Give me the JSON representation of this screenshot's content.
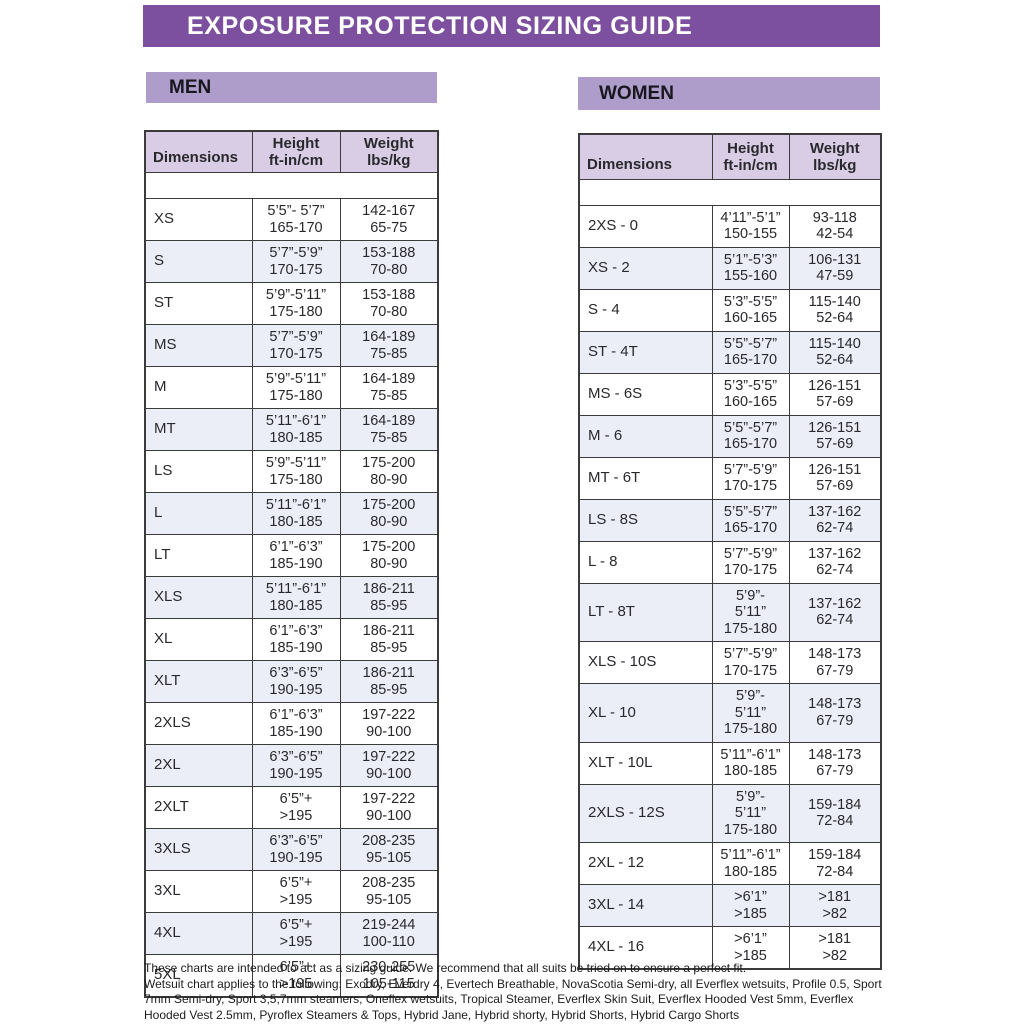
{
  "page": {
    "title": "EXPOSURE PROTECTION SIZING GUIDE"
  },
  "colors": {
    "title_bar": "#7C509E",
    "section_bar": "#AE9DCB",
    "table_header": "#D9CDE5",
    "band": "#4C88BD",
    "row_alt": "#ECEEF7",
    "border": "#3B3B3B"
  },
  "tables": [
    {
      "section_label": "MEN",
      "band_label": "MEN",
      "columns": {
        "dimensions": "Dimensions",
        "height_line1": "Height",
        "height_line2": "ft-in/cm",
        "weight_line1": "Weight",
        "weight_line2": "lbs/kg"
      },
      "rows": [
        {
          "size": "XS",
          "height": [
            "5’5”- 5’7”",
            "165-170"
          ],
          "weight": [
            "142-167",
            "65-75"
          ]
        },
        {
          "size": "S",
          "height": [
            "5’7”-5’9”",
            "170-175"
          ],
          "weight": [
            "153-188",
            "70-80"
          ]
        },
        {
          "size": "ST",
          "height": [
            "5’9”-5’11”",
            "175-180"
          ],
          "weight": [
            "153-188",
            "70-80"
          ]
        },
        {
          "size": "MS",
          "height": [
            "5’7”-5’9”",
            "170-175"
          ],
          "weight": [
            "164-189",
            "75-85"
          ]
        },
        {
          "size": "M",
          "height": [
            "5’9”-5’11”",
            "175-180"
          ],
          "weight": [
            "164-189",
            "75-85"
          ]
        },
        {
          "size": "MT",
          "height": [
            "5’11”-6’1”",
            "180-185"
          ],
          "weight": [
            "164-189",
            "75-85"
          ]
        },
        {
          "size": "LS",
          "height": [
            "5’9”-5’11”",
            "175-180"
          ],
          "weight": [
            "175-200",
            "80-90"
          ]
        },
        {
          "size": "L",
          "height": [
            "5’11”-6’1”",
            "180-185"
          ],
          "weight": [
            "175-200",
            "80-90"
          ]
        },
        {
          "size": "LT",
          "height": [
            "6’1”-6’3”",
            "185-190"
          ],
          "weight": [
            "175-200",
            "80-90"
          ]
        },
        {
          "size": "XLS",
          "height": [
            "5’11”-6’1”",
            "180-185"
          ],
          "weight": [
            "186-211",
            "85-95"
          ]
        },
        {
          "size": "XL",
          "height": [
            "6’1”-6’3”",
            "185-190"
          ],
          "weight": [
            "186-211",
            "85-95"
          ]
        },
        {
          "size": "XLT",
          "height": [
            "6’3”-6’5”",
            "190-195"
          ],
          "weight": [
            "186-211",
            "85-95"
          ]
        },
        {
          "size": "2XLS",
          "height": [
            "6’1”-6’3”",
            "185-190"
          ],
          "weight": [
            "197-222",
            "90-100"
          ]
        },
        {
          "size": "2XL",
          "height": [
            "6’3”-6’5”",
            "190-195"
          ],
          "weight": [
            "197-222",
            "90-100"
          ]
        },
        {
          "size": "2XLT",
          "height": [
            "6’5”+",
            ">195"
          ],
          "weight": [
            "197-222",
            "90-100"
          ]
        },
        {
          "size": "3XLS",
          "height": [
            "6’3”-6’5”",
            "190-195"
          ],
          "weight": [
            "208-235",
            "95-105"
          ]
        },
        {
          "size": "3XL",
          "height": [
            "6’5”+",
            ">195"
          ],
          "weight": [
            "208-235",
            "95-105"
          ]
        },
        {
          "size": "4XL",
          "height": [
            "6’5”+",
            ">195"
          ],
          "weight": [
            "219-244",
            "100-110"
          ]
        },
        {
          "size": "5XL",
          "height": [
            "6’5”+",
            ">195"
          ],
          "weight": [
            "230-255",
            "105-115"
          ]
        }
      ]
    },
    {
      "section_label": "WOMEN",
      "band_label": "WOMEN",
      "columns": {
        "dimensions": "Dimensions",
        "height_line1": "Height",
        "height_line2": "ft-in/cm",
        "weight_line1": "Weight",
        "weight_line2": "lbs/kg"
      },
      "rows": [
        {
          "size": "2XS - 0",
          "height": [
            "4’11”-5’1”",
            "150-155"
          ],
          "weight": [
            "93-118",
            "42-54"
          ]
        },
        {
          "size": "XS - 2",
          "height": [
            "5’1”-5’3”",
            "155-160"
          ],
          "weight": [
            "106-131",
            "47-59"
          ]
        },
        {
          "size": "S - 4",
          "height": [
            "5’3”-5’5”",
            "160-165"
          ],
          "weight": [
            "115-140",
            "52-64"
          ]
        },
        {
          "size": "ST - 4T",
          "height": [
            "5’5”-5’7”",
            "165-170"
          ],
          "weight": [
            "115-140",
            "52-64"
          ]
        },
        {
          "size": "MS - 6S",
          "height": [
            "5’3”-5’5”",
            "160-165"
          ],
          "weight": [
            "126-151",
            "57-69"
          ]
        },
        {
          "size": "M - 6",
          "height": [
            "5’5”-5’7”",
            "165-170"
          ],
          "weight": [
            "126-151",
            "57-69"
          ]
        },
        {
          "size": "MT - 6T",
          "height": [
            "5’7”-5’9”",
            "170-175"
          ],
          "weight": [
            "126-151",
            "57-69"
          ]
        },
        {
          "size": "LS - 8S",
          "height": [
            "5’5”-5’7”",
            "165-170"
          ],
          "weight": [
            "137-162",
            "62-74"
          ]
        },
        {
          "size": "L - 8",
          "height": [
            "5’7”-5’9”",
            "170-175"
          ],
          "weight": [
            "137-162",
            "62-74"
          ]
        },
        {
          "size": "LT - 8T",
          "height": [
            "5’9”-",
            "5’11”",
            "175-180"
          ],
          "weight": [
            "137-162",
            "62-74"
          ]
        },
        {
          "size": "XLS - 10S",
          "height": [
            "5’7”-5’9”",
            "170-175"
          ],
          "weight": [
            "148-173",
            "67-79"
          ]
        },
        {
          "size": "XL - 10",
          "height": [
            "5’9”-",
            "5’11”",
            "175-180"
          ],
          "weight": [
            "148-173",
            "67-79"
          ]
        },
        {
          "size": "XLT - 10L",
          "height": [
            "5’11”-6’1”",
            "180-185"
          ],
          "weight": [
            "148-173",
            "67-79"
          ]
        },
        {
          "size": "2XLS - 12S",
          "height": [
            "5’9”-",
            "5’11”",
            "175-180"
          ],
          "weight": [
            "159-184",
            "72-84"
          ]
        },
        {
          "size": "2XL - 12",
          "height": [
            "5’11”-6’1”",
            "180-185"
          ],
          "weight": [
            "159-184",
            "72-84"
          ]
        },
        {
          "size": "3XL - 14",
          "height": [
            ">6’1”",
            ">185"
          ],
          "weight": [
            ">181",
            ">82"
          ]
        },
        {
          "size": "4XL - 16",
          "height": [
            ">6’1”",
            ">185"
          ],
          "weight": [
            ">181",
            ">82"
          ]
        }
      ]
    }
  ],
  "footer": {
    "line1": "These charts are intended to act as a sizing guide. We recommend that all suits be tried on to ensure a perfect fit.",
    "line2": "Wetsuit chart applies to the following: Exodry, Everdry 4, Evertech Breathable, NovaScotia Semi-dry, all Everflex wetsuits, Profile 0.5, Sport 7mm Semi-dry, Sport 3,5,7mm steamers, Oneflex wetsuits, Tropical Steamer, Everflex Skin Suit, Everflex Hooded Vest 5mm, Everflex Hooded Vest  2.5mm, Pyroflex Steamers & Tops, Hybrid Jane, Hybrid shorty, Hybrid Shorts, Hybrid Cargo Shorts"
  }
}
